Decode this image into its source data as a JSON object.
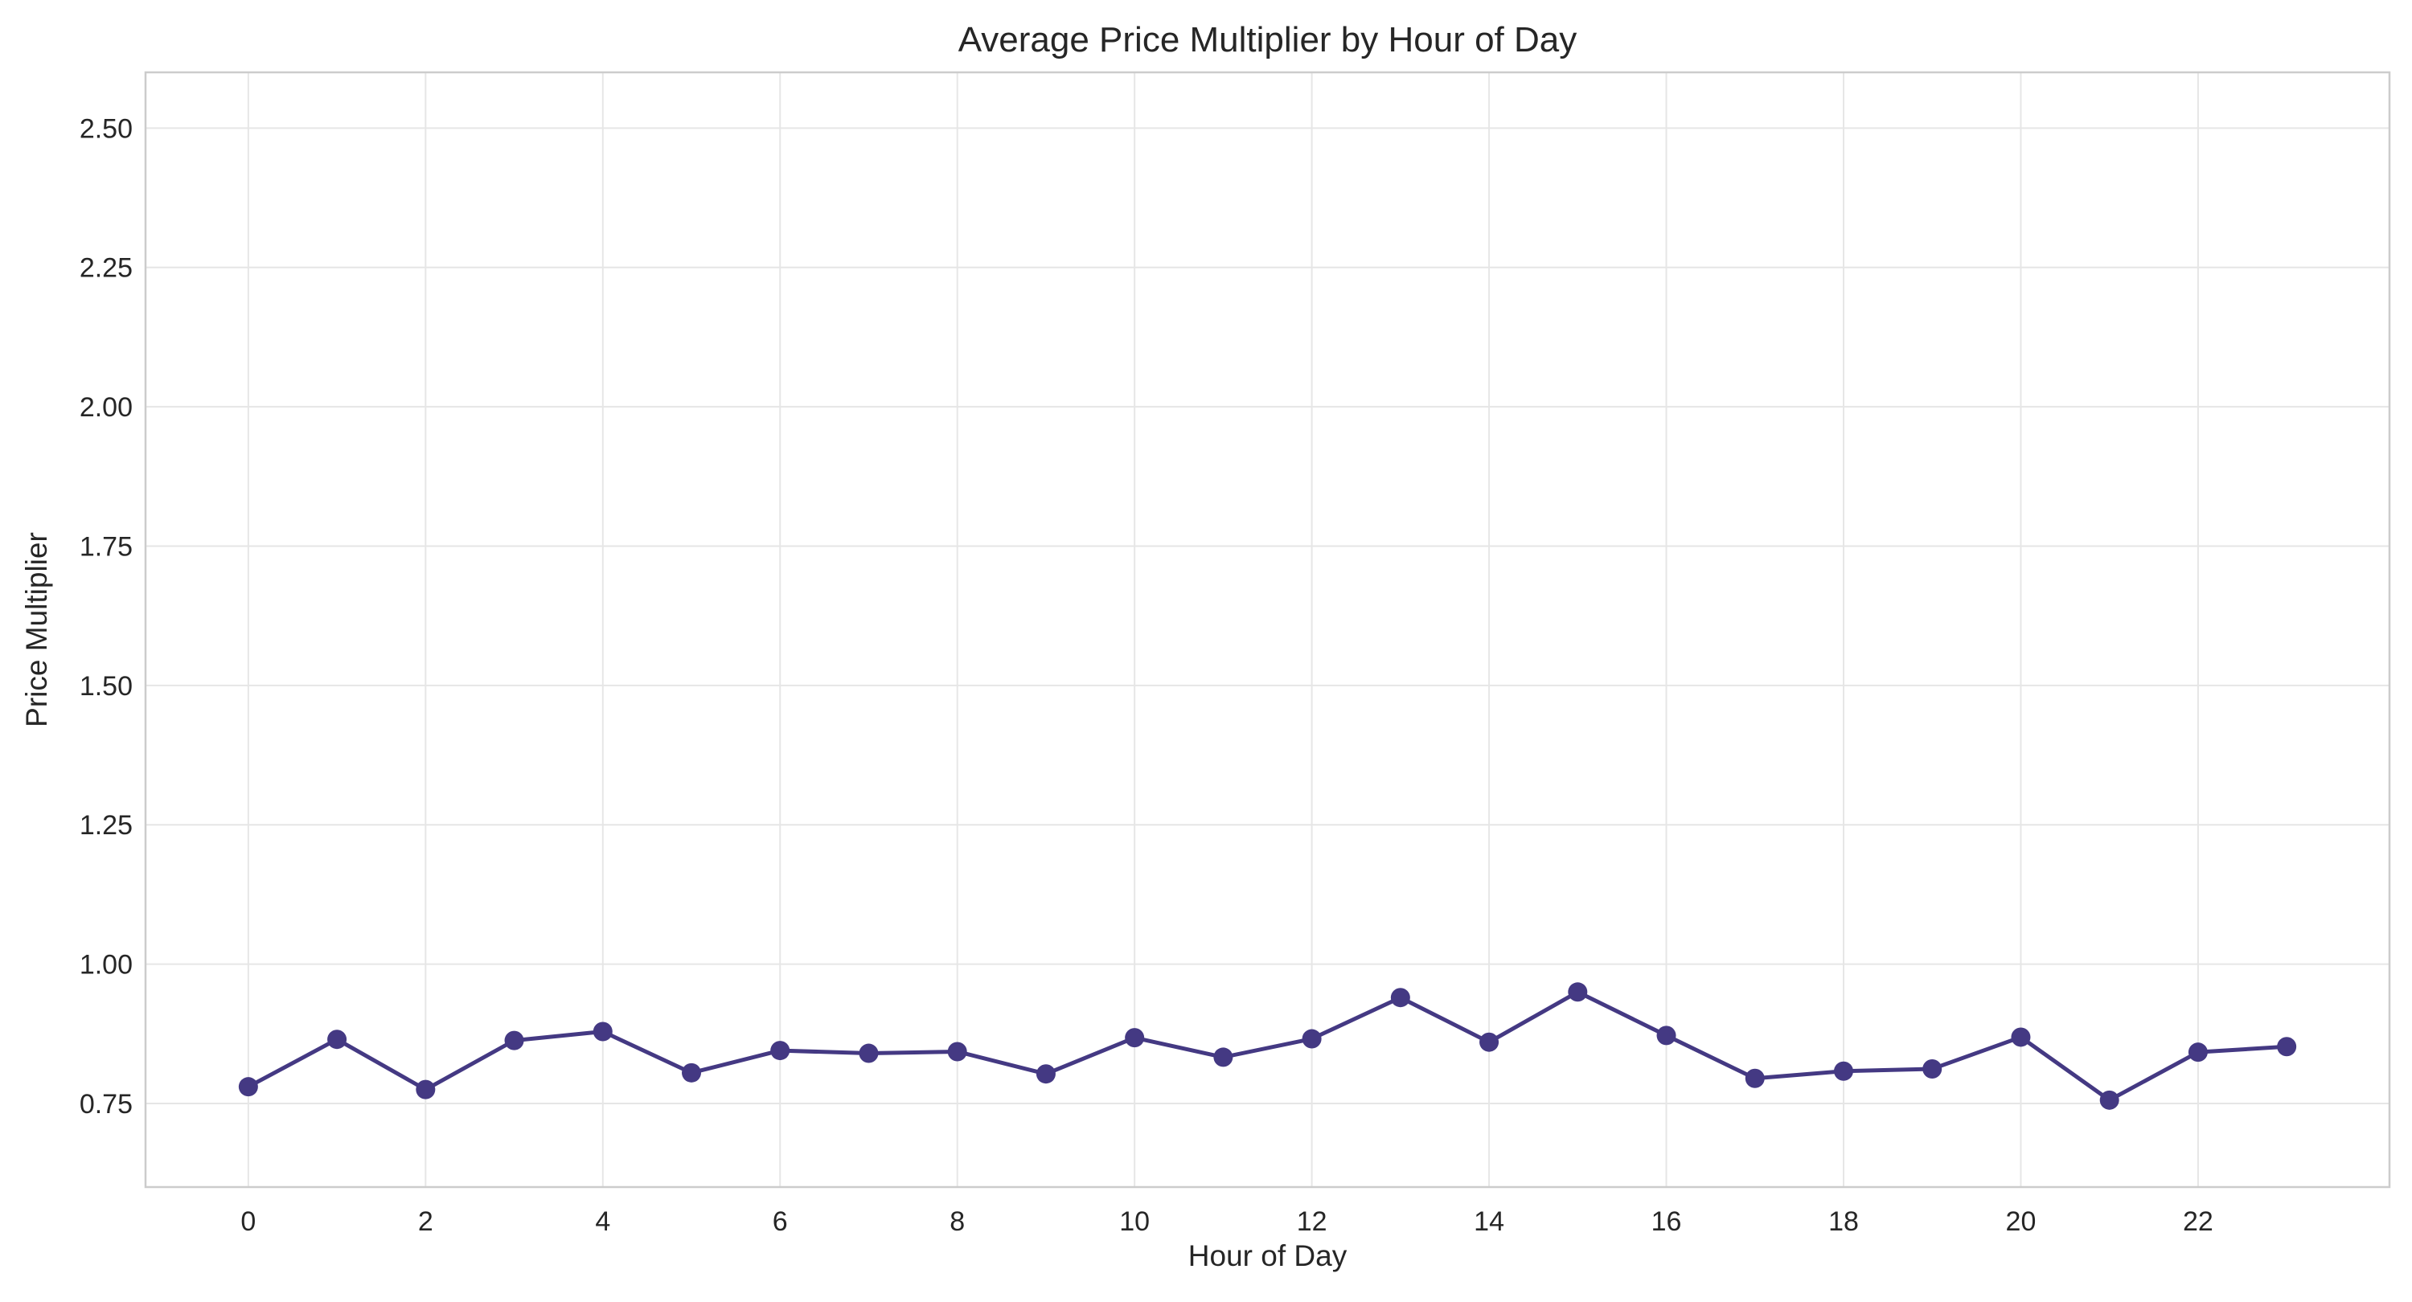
{
  "chart_data": {
    "type": "line",
    "title": "Average Price Multiplier by Hour of Day",
    "xlabel": "Hour of Day",
    "ylabel": "Price Multiplier",
    "x": [
      0,
      1,
      2,
      3,
      4,
      5,
      6,
      7,
      8,
      9,
      10,
      11,
      12,
      13,
      14,
      15,
      16,
      17,
      18,
      19,
      20,
      21,
      22,
      23
    ],
    "series": [
      {
        "name": "",
        "color": "#443983",
        "values": [
          0.78,
          0.865,
          0.775,
          0.863,
          0.879,
          0.805,
          0.845,
          0.84,
          0.843,
          0.803,
          0.868,
          0.833,
          0.866,
          0.94,
          0.86,
          0.95,
          0.872,
          0.795,
          0.808,
          0.812,
          0.869,
          0.756,
          0.842,
          0.852
        ]
      }
    ],
    "xlim": [
      -1.16,
      24.16
    ],
    "ylim": [
      0.6,
      2.6
    ],
    "xticks": [
      "0",
      "2",
      "4",
      "6",
      "8",
      "10",
      "12",
      "14",
      "16",
      "18",
      "20",
      "22"
    ],
    "yticks": [
      "0.75",
      "1.00",
      "1.25",
      "1.50",
      "1.75",
      "2.00",
      "2.25",
      "2.50"
    ],
    "grid": true,
    "legend": "none",
    "colors": {
      "line": "#443983",
      "grid": "#e6e6e6",
      "frame": "#cccccc",
      "text": "#262626"
    }
  }
}
